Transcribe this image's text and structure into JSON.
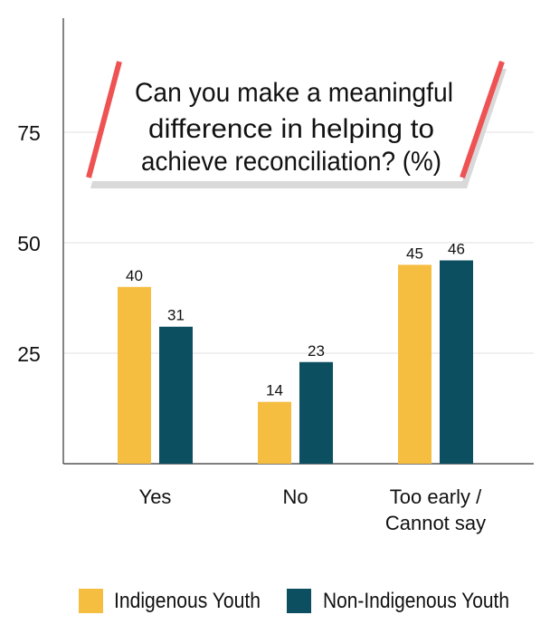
{
  "chart_data": {
    "type": "bar",
    "title": "Can you make a meaningful difference in helping to achieve reconciliation? (%)",
    "title_lines": [
      "Can you make a meaningful",
      "difference in helping to",
      "achieve reconciliation? (%)"
    ],
    "categories": [
      "Yes",
      "No",
      "Too early / Cannot say"
    ],
    "category_lines": [
      [
        "Yes"
      ],
      [
        "No"
      ],
      [
        "Too early /",
        "Cannot say"
      ]
    ],
    "series": [
      {
        "name": "Indigenous Youth",
        "color": "#F6BE41",
        "values": [
          40,
          14,
          45
        ]
      },
      {
        "name": "Non-Indigenous Youth",
        "color": "#0B4F61",
        "values": [
          31,
          23,
          46
        ]
      }
    ],
    "yticks": [
      25,
      50,
      75
    ],
    "ylim": [
      0,
      100
    ],
    "xlabel": "",
    "ylabel": "",
    "grid": true,
    "legend_position": "bottom",
    "accent_color": "#EE5253"
  }
}
